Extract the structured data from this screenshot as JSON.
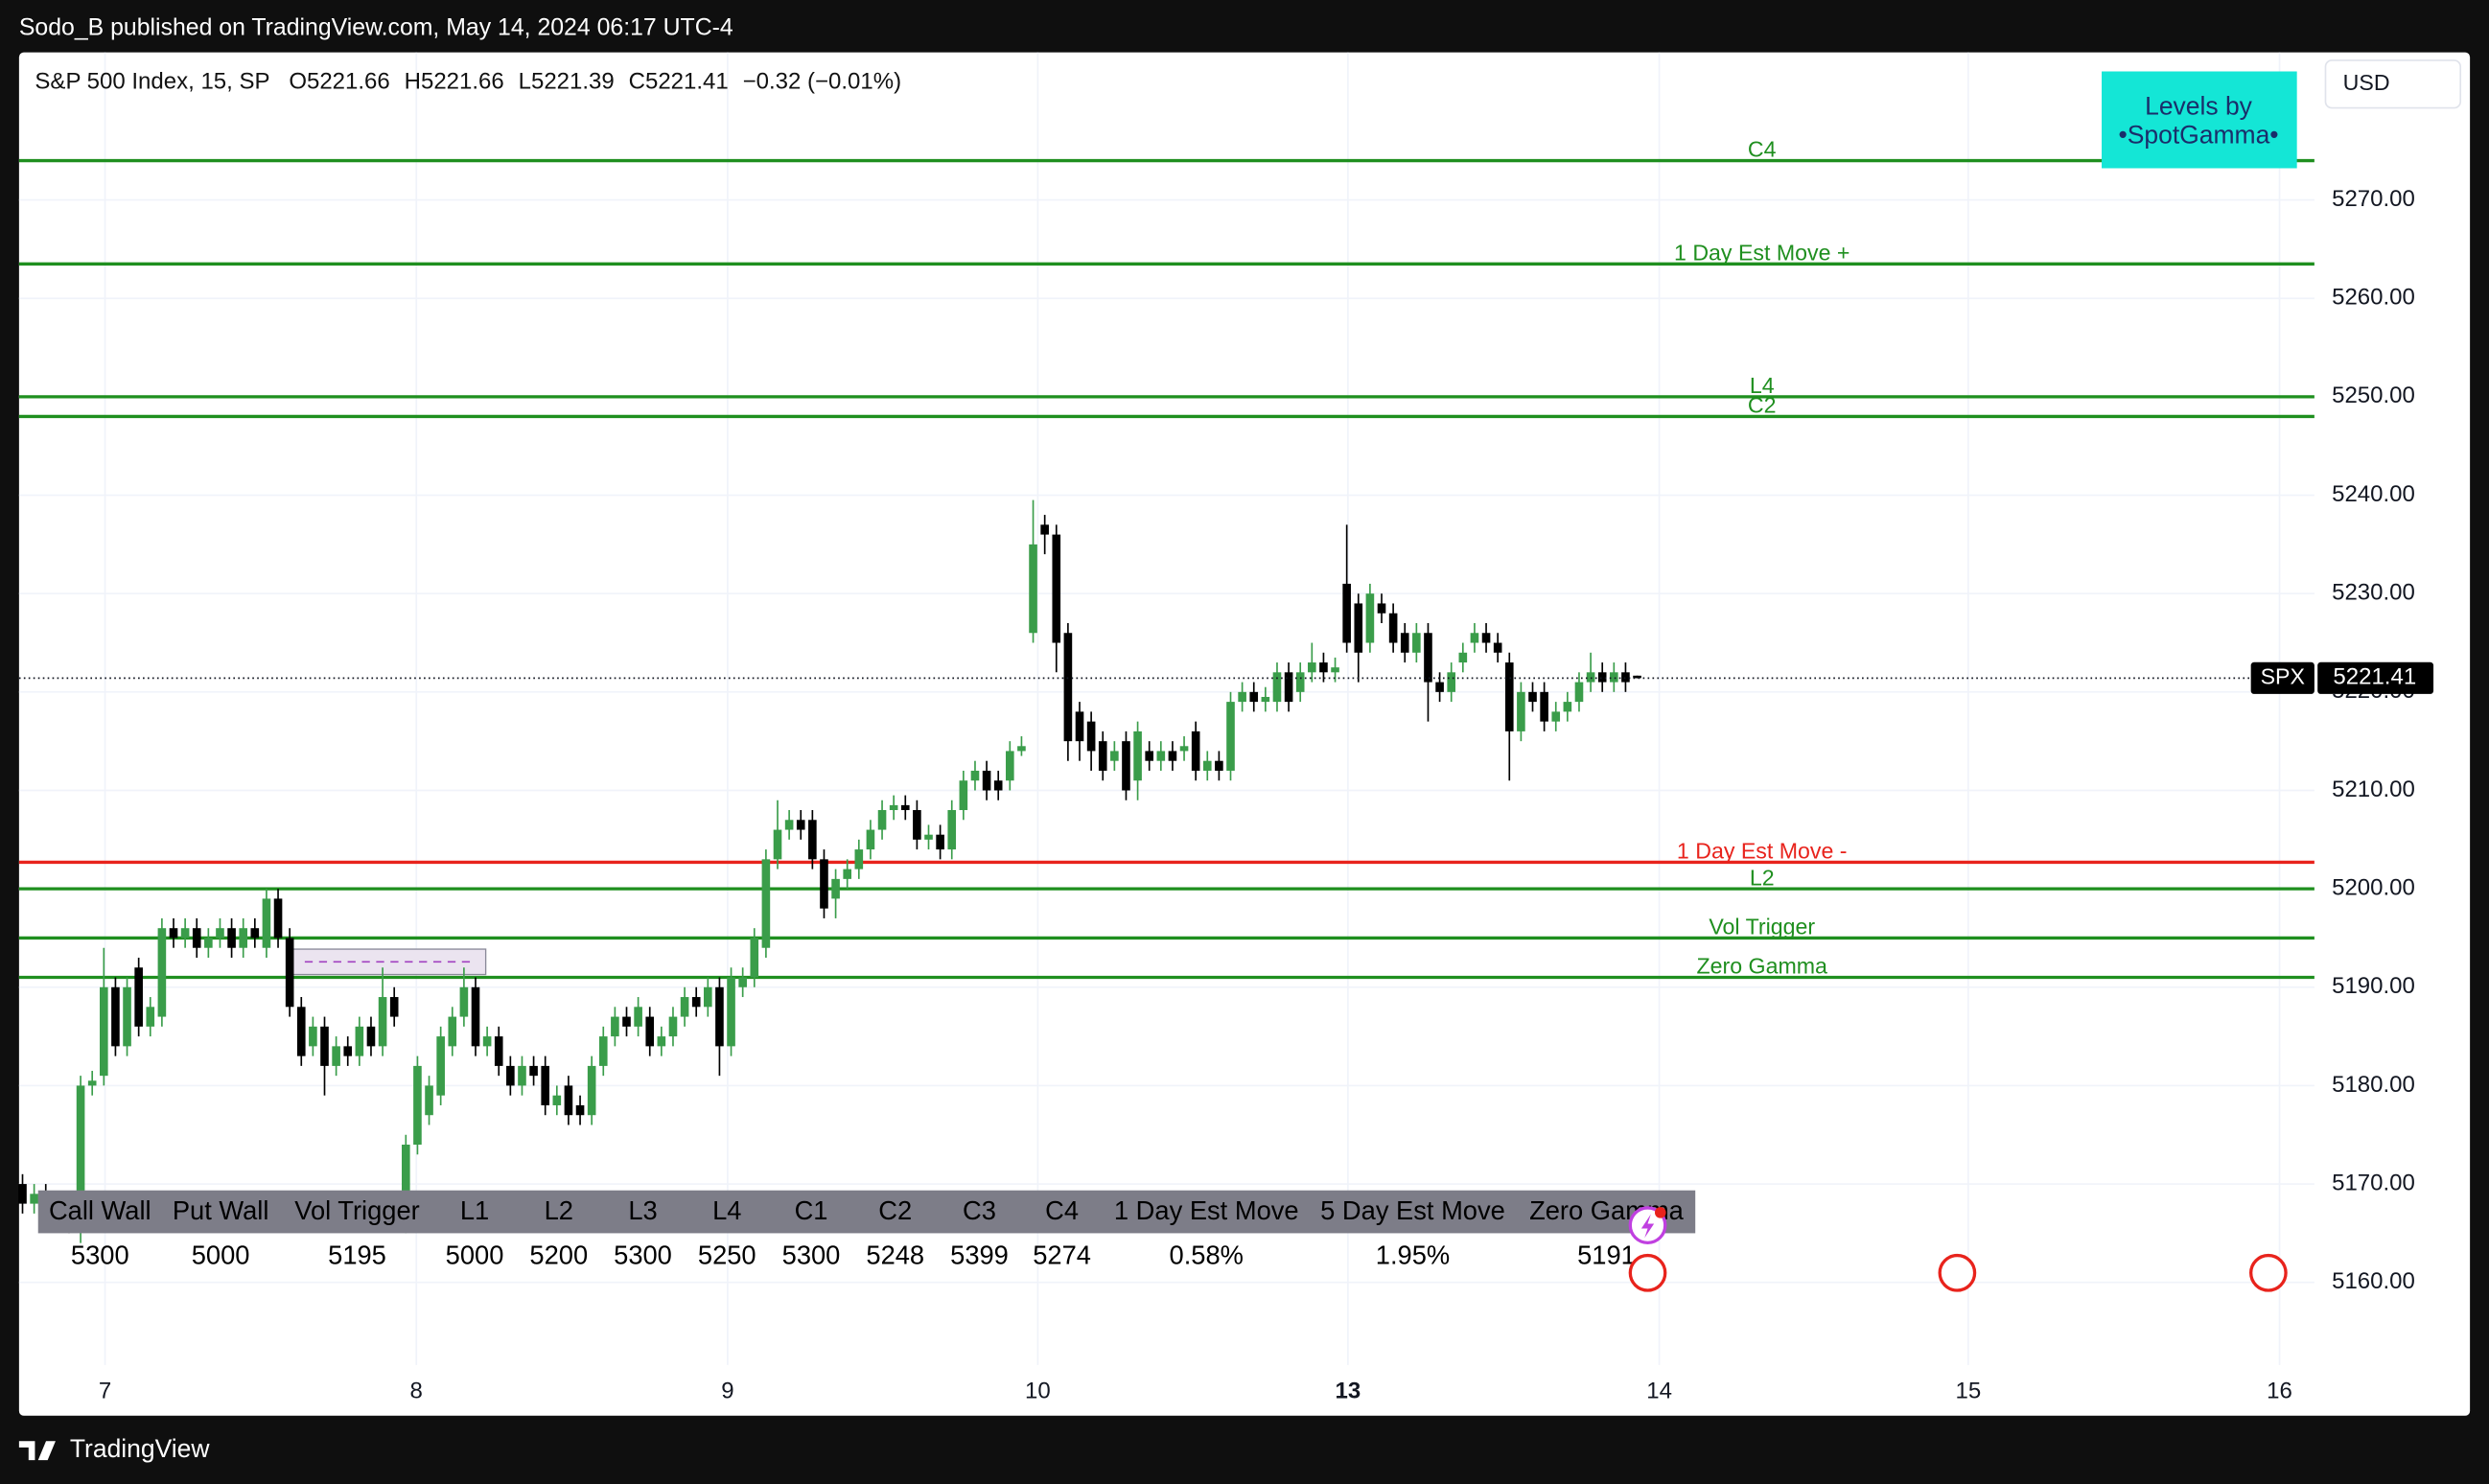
{
  "page": {
    "publisher": "Sodo_B published on TradingView.com, May 14, 2024 06:17 UTC-4",
    "brand": "TradingView",
    "currency": "USD",
    "badge": [
      "Levels by",
      "•SpotGamma•"
    ]
  },
  "chart_data": {
    "type": "candlestick",
    "symbol": "S&P 500 Index, 15, SP",
    "legend": [
      "O5221.66",
      "H5221.66",
      "L5221.39",
      "C5221.41",
      "−0.32 (−0.01%)"
    ],
    "up_color": "#3a9d4a",
    "down_color": "#000000",
    "xlim": [
      -0.3,
      197.3
    ],
    "xticks": [
      {
        "value": 7.1,
        "label": "7"
      },
      {
        "value": 33.9,
        "label": "8"
      },
      {
        "value": 60.7,
        "label": "9"
      },
      {
        "value": 87.4,
        "label": "10"
      },
      {
        "value": 114.1,
        "label": "13"
      },
      {
        "value": 140.9,
        "label": "14"
      },
      {
        "value": 167.5,
        "label": "15"
      },
      {
        "value": 194.3,
        "label": "16"
      }
    ],
    "ylim": [
      5146.45,
      5285
    ],
    "yticks": [
      {
        "value": 5160,
        "label": "5160.00"
      },
      {
        "value": 5170,
        "label": "5170.00"
      },
      {
        "value": 5180,
        "label": "5180.00"
      },
      {
        "value": 5190,
        "label": "5190.00"
      },
      {
        "value": 5200,
        "label": "5200.00"
      },
      {
        "value": 5210,
        "label": "5210.00"
      },
      {
        "value": 5220,
        "label": "5220.00"
      },
      {
        "value": 5230,
        "label": "5230.00"
      },
      {
        "value": 5240,
        "label": "5240.00"
      },
      {
        "value": 5250,
        "label": "5250.00"
      },
      {
        "value": 5260,
        "label": "5260.00"
      },
      {
        "value": 5270,
        "label": "5270.00"
      }
    ],
    "grid": true,
    "open": [
      5170,
      5168,
      5169,
      5167,
      5168,
      5166,
      5180,
      5181,
      5190,
      5184,
      5192,
      5186,
      5187,
      5196,
      5195,
      5196,
      5194,
      5195,
      5196,
      5194,
      5196,
      5194,
      5199,
      5195,
      5188,
      5184,
      5186,
      5182,
      5184,
      5183,
      5186,
      5184,
      5189,
      5166,
      5174,
      5177,
      5179,
      5184,
      5187,
      5190,
      5184,
      5185,
      5182,
      5180,
      5182,
      5182,
      5178,
      5180,
      5178,
      5177,
      5182,
      5185,
      5187,
      5186,
      5187,
      5184,
      5185,
      5187,
      5189,
      5188,
      5190,
      5184,
      5190,
      5191,
      5194,
      5203,
      5206,
      5207,
      5207,
      5203,
      5199,
      5201,
      5202,
      5204,
      5206,
      5208,
      5208.5,
      5208,
      5205,
      5205.5,
      5204,
      5208,
      5211,
      5212,
      5211,
      5211,
      5214,
      5226,
      5237,
      5236,
      5226,
      5218,
      5217,
      5215,
      5213,
      5215,
      5211,
      5214,
      5213,
      5214,
      5214,
      5216,
      5212,
      5213,
      5212,
      5219,
      5220,
      5219,
      5219,
      5222,
      5220,
      5222,
      5223,
      5222,
      5231,
      5229,
      5225,
      5229,
      5228,
      5226,
      5224,
      5226,
      5221,
      5220,
      5223,
      5225,
      5226,
      5225,
      5223,
      5216,
      5220,
      5220,
      5217,
      5218,
      5219,
      5221,
      5222,
      5221,
      5222,
      5221.66
    ],
    "high": [
      5171,
      5170,
      5170,
      5169,
      5169,
      5181,
      5181.5,
      5194,
      5191,
      5191,
      5193,
      5189,
      5197,
      5197,
      5197,
      5197,
      5196,
      5197,
      5197,
      5197,
      5197,
      5200,
      5200,
      5196,
      5189,
      5187,
      5187,
      5185,
      5185,
      5187,
      5187,
      5192,
      5190,
      5175,
      5183,
      5181,
      5186,
      5188,
      5192,
      5191,
      5186,
      5186,
      5183,
      5183,
      5183,
      5183,
      5180,
      5181,
      5179,
      5183,
      5186,
      5188,
      5188,
      5189,
      5188,
      5186,
      5188,
      5190,
      5190,
      5191,
      5191,
      5192,
      5192,
      5196,
      5204,
      5209,
      5208,
      5208,
      5208,
      5204,
      5202,
      5203,
      5205,
      5207,
      5209,
      5209.5,
      5209.5,
      5209,
      5206.5,
      5206.5,
      5209,
      5212,
      5213,
      5213,
      5212,
      5215,
      5215.5,
      5239.5,
      5238,
      5237,
      5227,
      5219,
      5218,
      5216,
      5215,
      5216,
      5217,
      5215,
      5215,
      5215,
      5215.5,
      5217,
      5214,
      5214,
      5220,
      5221,
      5221,
      5220.5,
      5223,
      5223,
      5223,
      5225,
      5224,
      5223.5,
      5237,
      5230,
      5231,
      5230,
      5229,
      5227,
      5227,
      5227,
      5222,
      5223,
      5225,
      5227,
      5227,
      5226,
      5224,
      5221,
      5221,
      5221,
      5219,
      5220,
      5222,
      5224,
      5223,
      5223,
      5223,
      5221.66
    ],
    "low": [
      5167,
      5167,
      5166,
      5166,
      5165,
      5164,
      5179,
      5180,
      5183,
      5183,
      5185,
      5185,
      5186,
      5194,
      5194,
      5193,
      5193,
      5194,
      5193,
      5193,
      5194,
      5193,
      5194,
      5187,
      5182,
      5183,
      5179,
      5181,
      5182,
      5182,
      5183,
      5183,
      5186,
      5165,
      5173,
      5176,
      5178,
      5183,
      5186,
      5183,
      5183,
      5181,
      5179,
      5179,
      5180,
      5177,
      5177,
      5176,
      5176,
      5176,
      5181,
      5184,
      5185,
      5185,
      5183,
      5183,
      5184,
      5186,
      5187,
      5187,
      5181,
      5183,
      5189,
      5190,
      5193,
      5202,
      5205,
      5205,
      5202,
      5197,
      5197,
      5200,
      5201,
      5203,
      5205,
      5207,
      5207,
      5204,
      5204,
      5203,
      5203,
      5207,
      5210,
      5209,
      5209,
      5210,
      5213.5,
      5225,
      5234,
      5222,
      5213,
      5213,
      5212,
      5211,
      5212,
      5209,
      5209,
      5212,
      5212,
      5212,
      5213,
      5211,
      5211,
      5211,
      5211,
      5218,
      5218,
      5218,
      5218,
      5218,
      5219,
      5221,
      5221,
      5221,
      5224,
      5221,
      5224,
      5227,
      5224,
      5223,
      5223,
      5217,
      5219,
      5219,
      5222,
      5224,
      5224,
      5223,
      5211,
      5215,
      5218,
      5216,
      5216,
      5217,
      5218,
      5220,
      5220,
      5220,
      5220,
      5221.39
    ],
    "close": [
      5168,
      5169,
      5167,
      5168,
      5166,
      5180,
      5180.5,
      5190,
      5184,
      5190,
      5186,
      5188,
      5196,
      5195,
      5196,
      5194,
      5195,
      5196,
      5194,
      5196,
      5195,
      5199,
      5195,
      5188,
      5183,
      5186,
      5182,
      5184,
      5183,
      5186,
      5184,
      5189,
      5187,
      5174,
      5182,
      5180,
      5185,
      5187,
      5190,
      5184,
      5185,
      5182,
      5180,
      5182,
      5181,
      5178,
      5179,
      5177,
      5177,
      5182,
      5185,
      5187,
      5186,
      5188,
      5184,
      5185,
      5187,
      5189,
      5188,
      5190,
      5184,
      5191,
      5191,
      5195,
      5203,
      5206,
      5207,
      5206,
      5203,
      5198,
      5201,
      5202,
      5204,
      5206,
      5208,
      5208.5,
      5208,
      5205,
      5205.5,
      5204,
      5208,
      5211,
      5212,
      5210,
      5210,
      5214,
      5214.5,
      5235,
      5236,
      5225,
      5215,
      5215,
      5214,
      5212,
      5214,
      5210,
      5216,
      5213,
      5214,
      5213,
      5214.5,
      5212,
      5213,
      5212,
      5219,
      5220,
      5219,
      5219.5,
      5222,
      5219,
      5222,
      5223,
      5222,
      5222.5,
      5225,
      5224,
      5230,
      5228,
      5225,
      5224,
      5226,
      5221,
      5220,
      5222,
      5224,
      5226,
      5225,
      5224,
      5216,
      5220,
      5219,
      5217,
      5218,
      5219,
      5221,
      5222,
      5221,
      5222,
      5221,
      5221.41
    ],
    "last_name": "SPX",
    "last_price": 5221.41,
    "levels": [
      {
        "name": "C4",
        "value": 5274,
        "color": "#1f8f1f"
      },
      {
        "name": "1 Day Est Move +",
        "value": 5263.5,
        "color": "#1f8f1f"
      },
      {
        "name": "L4",
        "value": 5250,
        "color": "#1f8f1f"
      },
      {
        "name": "C2",
        "value": 5248,
        "color": "#1f8f1f"
      },
      {
        "name": "1 Day Est Move -",
        "value": 5202.7,
        "color": "#e8231c"
      },
      {
        "name": "L2",
        "value": 5200,
        "color": "#1f8f1f"
      },
      {
        "name": "Vol Trigger",
        "value": 5195,
        "color": "#1f8f1f"
      },
      {
        "name": "Zero Gamma",
        "value": 5191,
        "color": "#1f8f1f"
      }
    ]
  },
  "levels_table": {
    "headers": [
      "Call Wall",
      "Put Wall",
      "Vol Trigger",
      "L1",
      "L2",
      "L3",
      "L4",
      "C1",
      "C2",
      "C3",
      "C4",
      "1 Day Est Move",
      "5 Day Est Move",
      "Zero Gamma"
    ],
    "values": [
      "5300",
      "5000",
      "5195",
      "5000",
      "5200",
      "5300",
      "5250",
      "5300",
      "5248",
      "5399",
      "5274",
      "0.58%",
      "1.95%",
      "5191"
    ]
  }
}
